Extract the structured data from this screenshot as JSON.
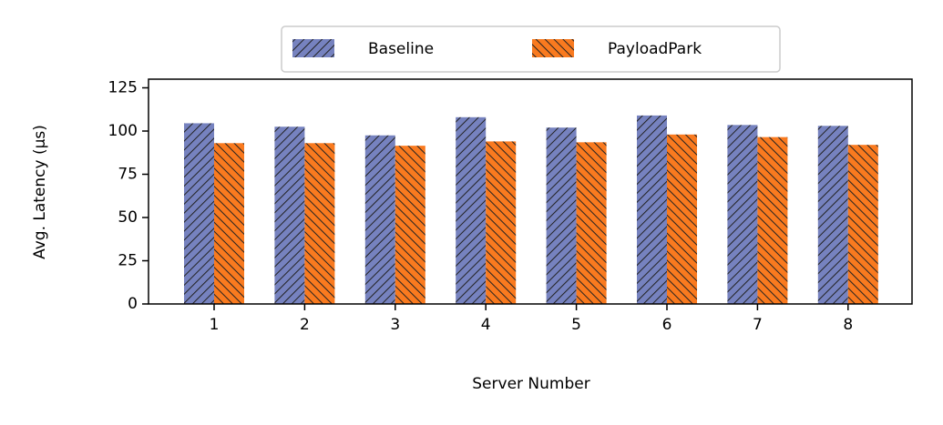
{
  "chart_data": {
    "type": "bar",
    "categories": [
      "1",
      "2",
      "3",
      "4",
      "5",
      "6",
      "7",
      "8"
    ],
    "series": [
      {
        "name": "Baseline",
        "color": "#7682bf",
        "values": [
          104.5,
          102.5,
          97.5,
          108,
          102,
          109,
          103.5,
          103
        ]
      },
      {
        "name": "PayloadPark",
        "color": "#f97a1f",
        "values": [
          93,
          93,
          91.5,
          94,
          93.5,
          98,
          96.5,
          92
        ]
      }
    ],
    "xlabel": "Server Number",
    "ylabel": "Avg. Latency (μs)",
    "ylim": [
      0,
      130
    ],
    "yticks": [
      0,
      25,
      50,
      75,
      100,
      125
    ],
    "legend": "upper center",
    "hatch": true
  }
}
